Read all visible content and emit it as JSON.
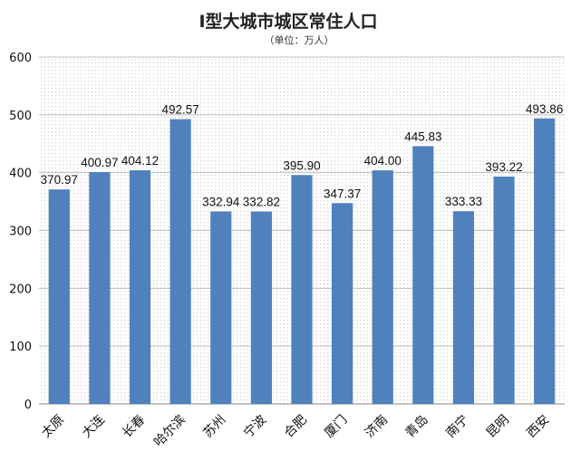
{
  "chart_data": {
    "type": "bar",
    "title": "Ⅰ型大城市城区常住人口",
    "subtitle": "（单位：万人）",
    "xlabel": "",
    "ylabel": "",
    "ylim": [
      0,
      600
    ],
    "yticks": [
      "0",
      "100",
      "200",
      "300",
      "400",
      "500",
      "600"
    ],
    "grid": true,
    "legend": "none",
    "categories": [
      "太原",
      "大连",
      "长春",
      "哈尔滨",
      "苏州",
      "宁波",
      "合肥",
      "厦门",
      "济南",
      "青岛",
      "南宁",
      "昆明",
      "西安"
    ],
    "values": [
      370.97,
      400.97,
      404.12,
      492.57,
      332.94,
      332.82,
      395.9,
      347.37,
      404.0,
      445.83,
      333.33,
      393.22,
      493.86
    ],
    "data_labels": [
      "370.97",
      "400.97",
      "404.12",
      "492.57",
      "332.94",
      "332.82",
      "395.90",
      "347.37",
      "404.00",
      "445.83",
      "333.33",
      "393.22",
      "493.86"
    ],
    "colors": {
      "bar": "#4f81bd",
      "grid": "#bfbfbf",
      "dots": "#d0d0d0"
    }
  }
}
